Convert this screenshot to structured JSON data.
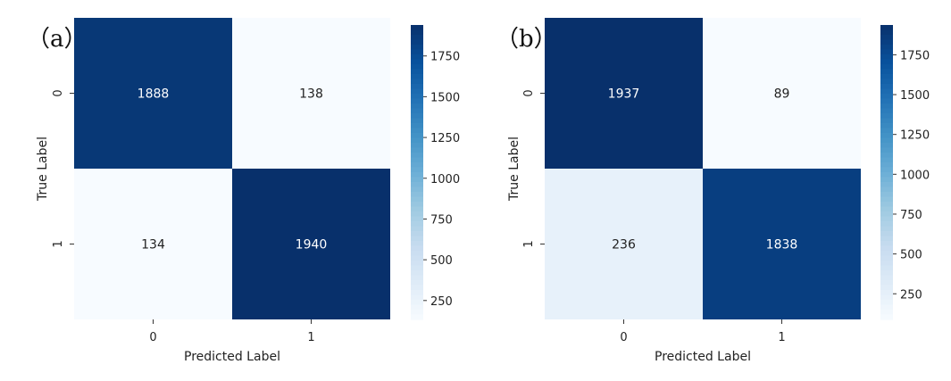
{
  "chart_data": [
    {
      "type": "heatmap",
      "panel_label": "（a）",
      "xlabel": "Predicted Label",
      "ylabel": "True Label",
      "x_categories": [
        "0",
        "1"
      ],
      "y_categories": [
        "0",
        "1"
      ],
      "values": [
        [
          1888,
          138
        ],
        [
          134,
          1940
        ]
      ],
      "colorbar": {
        "ticks": [
          "250",
          "500",
          "750",
          "1000",
          "1250",
          "1500",
          "1750"
        ],
        "min": 134,
        "max": 1940
      },
      "colormap": "Blues"
    },
    {
      "type": "heatmap",
      "panel_label": "（b）",
      "xlabel": "Predicted Label",
      "ylabel": "True Label",
      "x_categories": [
        "0",
        "1"
      ],
      "y_categories": [
        "0",
        "1"
      ],
      "values": [
        [
          1937,
          89
        ],
        [
          236,
          1838
        ]
      ],
      "colorbar": {
        "ticks": [
          "250",
          "500",
          "750",
          "1000",
          "1250",
          "1500",
          "1750"
        ],
        "min": 89,
        "max": 1937
      },
      "colormap": "Blues"
    }
  ],
  "colors": {
    "cmap_low": "#f7fbff",
    "cmap_high": "#08306b",
    "text_dark": "#222222",
    "text_light": "#ffffff"
  }
}
